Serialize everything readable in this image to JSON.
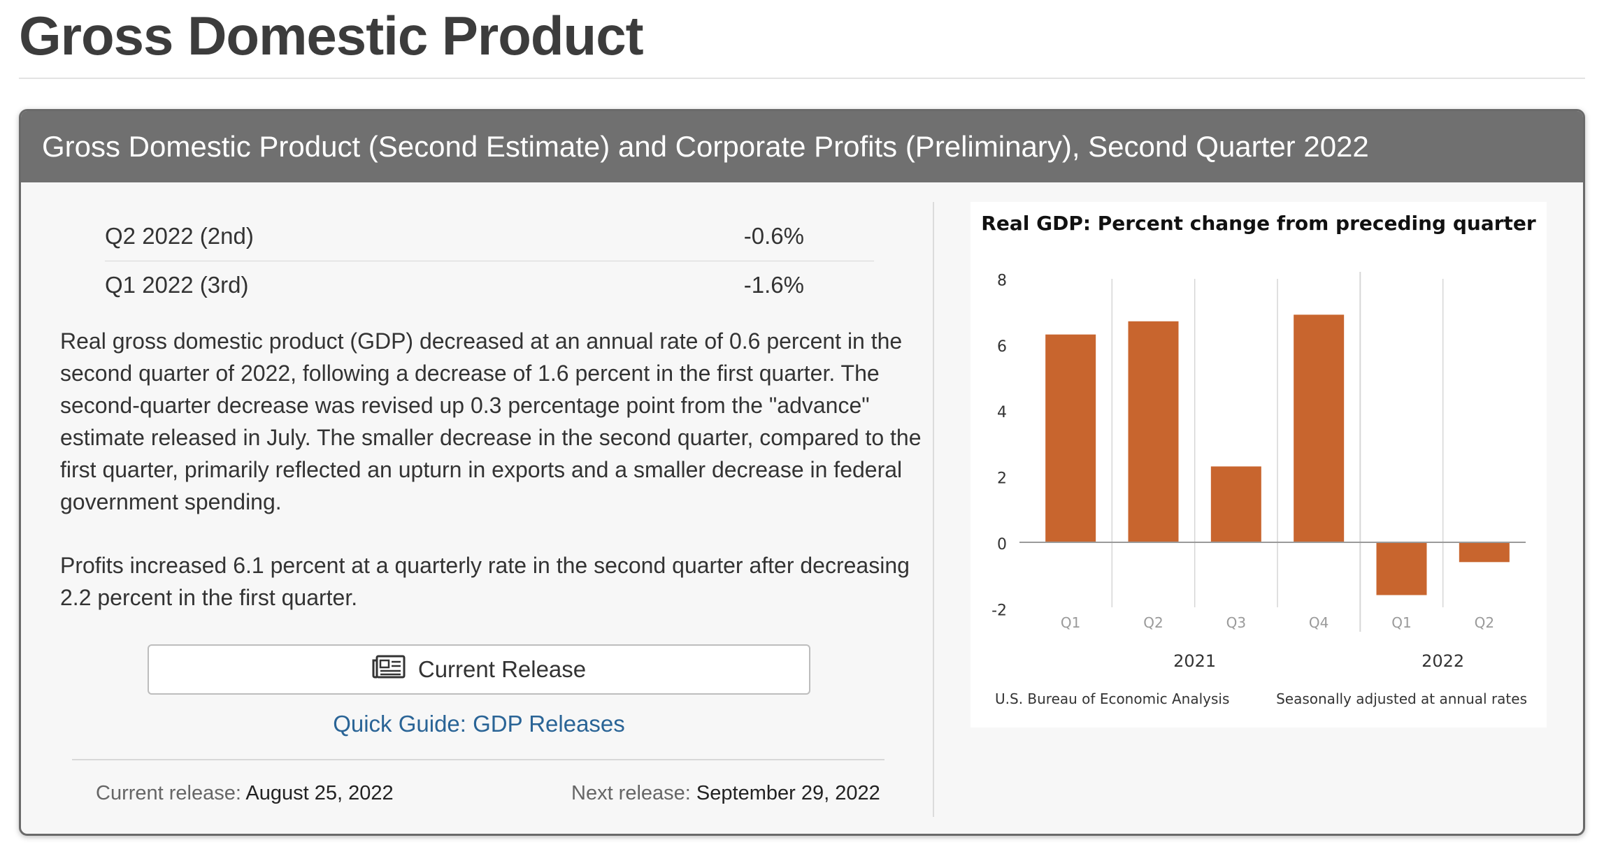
{
  "page": {
    "title": "Gross Domestic Product"
  },
  "card": {
    "header": "Gross Domestic Product (Second Estimate) and Corporate Profits (Preliminary), Second Quarter 2022",
    "stats": [
      {
        "label": "Q2 2022 (2nd)",
        "value": "-0.6%"
      },
      {
        "label": "Q1 2022 (3rd)",
        "value": "-1.6%"
      }
    ],
    "paragraph1": "Real gross domestic product (GDP) decreased at an annual rate of 0.6 percent in the second quarter of 2022, following a decrease of 1.6 percent in the first quarter. The second-quarter decrease was revised up 0.3 percentage point from the \"advance\" estimate released in July. The smaller decrease in the second quarter, compared to the first quarter, primarily reflected an upturn in exports and a smaller decrease in federal government spending.",
    "paragraph2": "Profits increased 6.1 percent at a quarterly rate in the second quarter after decreasing 2.2 percent in the first quarter.",
    "release_button": {
      "label": "Current Release",
      "icon": "newspaper-icon"
    },
    "guide_link": "Quick Guide: GDP Releases",
    "current_release_label": "Current release:",
    "current_release_date": "August 25, 2022",
    "next_release_label": "Next release:",
    "next_release_date": "September 29, 2022"
  },
  "chart_data": {
    "type": "bar",
    "title": "Real GDP:  Percent change from preceding quarter",
    "categories": [
      "Q1",
      "Q2",
      "Q3",
      "Q4",
      "Q1",
      "Q2"
    ],
    "groups": [
      {
        "label": "2021",
        "count": 4
      },
      {
        "label": "2022",
        "count": 2
      }
    ],
    "values": [
      6.3,
      6.7,
      2.3,
      6.9,
      -1.6,
      -0.6
    ],
    "ylim": [
      -2,
      8
    ],
    "yticks": [
      8,
      6,
      4,
      2,
      0,
      -2
    ],
    "bar_color": "#c8652e",
    "source": "U.S. Bureau of Economic Analysis",
    "note": "Seasonally adjusted at annual rates",
    "grid": false
  }
}
